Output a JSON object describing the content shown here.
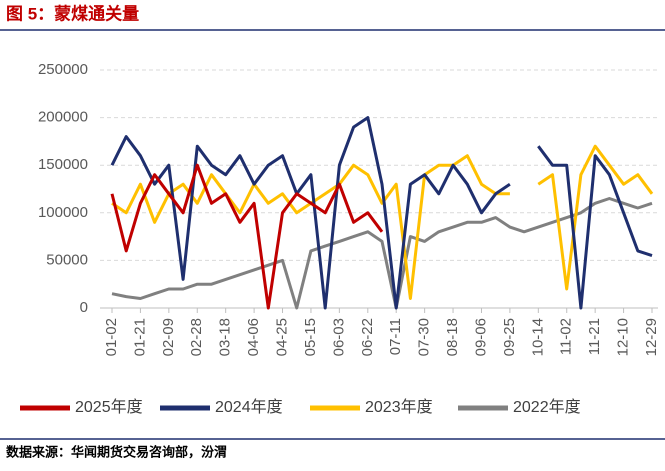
{
  "chart_data": {
    "type": "line",
    "title": "图 5：蒙煤通关量",
    "source": "数据来源：华闻期货交易咨询部，汾渭",
    "categories": [
      "01-02",
      null,
      "01-21",
      null,
      "02-09",
      null,
      "02-28",
      null,
      "03-18",
      null,
      "04-06",
      null,
      "04-25",
      null,
      "05-15",
      null,
      "06-03",
      null,
      "06-22",
      null,
      "07-11",
      null,
      "07-30",
      null,
      "08-18",
      null,
      "09-06",
      null,
      "09-25",
      null,
      "10-14",
      null,
      "11-02",
      null,
      "11-21",
      null,
      "12-10",
      null,
      "12-29"
    ],
    "series": [
      {
        "name": "2025年度",
        "color": "#c00000",
        "values": [
          120000,
          60000,
          110000,
          140000,
          120000,
          100000,
          150000,
          110000,
          120000,
          90000,
          110000,
          0,
          100000,
          120000,
          110000,
          100000,
          130000,
          90000,
          100000,
          80000,
          null,
          null,
          null,
          null,
          null,
          null,
          null,
          null,
          null,
          null,
          null,
          null,
          null,
          null,
          null,
          null,
          null,
          null,
          null
        ]
      },
      {
        "name": "2024年度",
        "color": "#1f2f6e",
        "values": [
          150000,
          180000,
          160000,
          130000,
          150000,
          30000,
          170000,
          150000,
          140000,
          160000,
          130000,
          150000,
          160000,
          120000,
          140000,
          0,
          150000,
          190000,
          200000,
          130000,
          0,
          130000,
          140000,
          120000,
          150000,
          130000,
          100000,
          120000,
          130000,
          null,
          170000,
          150000,
          150000,
          0,
          160000,
          140000,
          100000,
          60000,
          55000
        ]
      },
      {
        "name": "2023年度",
        "color": "#ffc000",
        "values": [
          110000,
          100000,
          130000,
          90000,
          120000,
          130000,
          110000,
          140000,
          120000,
          100000,
          130000,
          110000,
          120000,
          100000,
          110000,
          120000,
          130000,
          150000,
          140000,
          110000,
          130000,
          10000,
          140000,
          150000,
          150000,
          160000,
          130000,
          120000,
          120000,
          null,
          130000,
          140000,
          20000,
          140000,
          170000,
          150000,
          130000,
          140000,
          120000
        ]
      },
      {
        "name": "2022年度",
        "color": "#808080",
        "values": [
          15000,
          12000,
          10000,
          15000,
          20000,
          20000,
          25000,
          25000,
          30000,
          35000,
          40000,
          45000,
          50000,
          0,
          60000,
          65000,
          70000,
          75000,
          80000,
          70000,
          0,
          75000,
          70000,
          80000,
          85000,
          90000,
          90000,
          95000,
          85000,
          80000,
          85000,
          90000,
          95000,
          100000,
          110000,
          115000,
          110000,
          105000,
          110000
        ]
      }
    ],
    "ylim": [
      0,
      250000
    ],
    "yticks": [
      0,
      50000,
      100000,
      150000,
      200000,
      250000
    ],
    "grid": true,
    "legend": "bottom"
  }
}
